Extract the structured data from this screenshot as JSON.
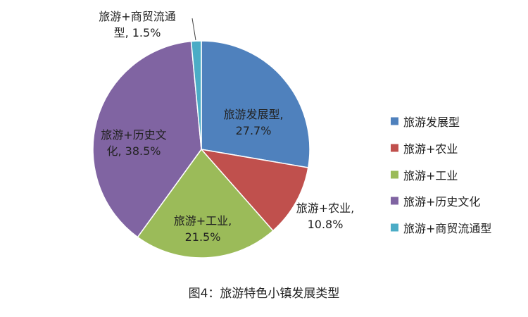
{
  "chart_data": {
    "type": "pie",
    "title": "图4：旅游特色小镇发展类型",
    "categories": [
      "旅游发展型",
      "旅游+农业",
      "旅游+工业",
      "旅游+历史文化",
      "旅游+商贸流通型"
    ],
    "values": [
      27.7,
      10.8,
      21.5,
      38.5,
      1.5
    ],
    "value_labels": [
      "旅游发展型, 27.7%",
      "旅游+农业, 10.8%",
      "旅游+工业, 21.5%",
      "旅游+历史文化, 38.5%",
      "旅游+商贸流通型, 1.5%"
    ],
    "colors": [
      "#4f81bd",
      "#c0504d",
      "#9bbb59",
      "#8064a2",
      "#4bacc6"
    ],
    "legend": "right"
  }
}
